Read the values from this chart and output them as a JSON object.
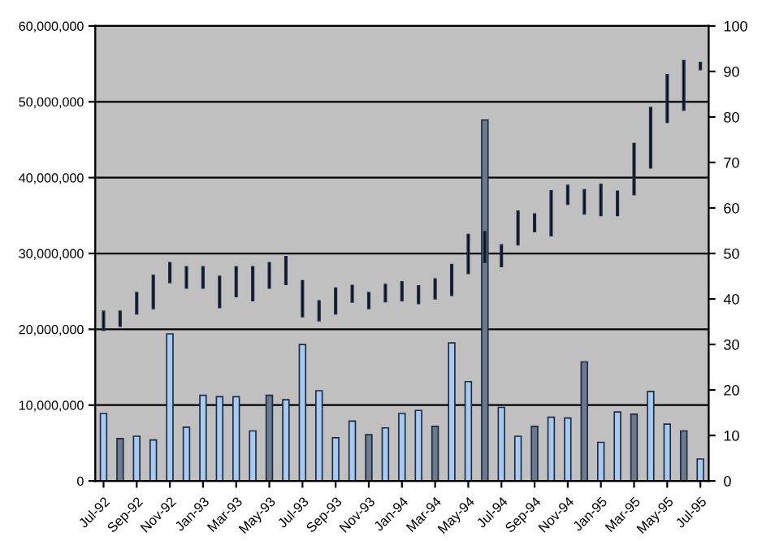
{
  "chart_data": {
    "type": "bar",
    "categories": [
      "Jul-92",
      null,
      "Sep-92",
      null,
      "Nov-92",
      null,
      "Jan-93",
      null,
      "Mar-93",
      null,
      "May-93",
      null,
      "Jul-93",
      null,
      "Sep-93",
      null,
      "Nov-93",
      null,
      "Jan-94",
      null,
      "Mar-94",
      null,
      "May-94",
      null,
      "Jul-94",
      null,
      "Sep-94",
      null,
      "Nov-94",
      null,
      "Jan-95",
      null,
      "Mar-95",
      null,
      "May-95",
      null,
      "Jul-95"
    ],
    "series": [
      {
        "color": "#a6caf0",
        "colors": [
          "#a6caf0",
          "#6b7a8c",
          "#a6caf0",
          "#a6caf0",
          "#a6caf0",
          "#a6caf0",
          "#a6caf0",
          "#a6caf0",
          "#a6caf0",
          "#a6caf0",
          "#6b7a8c",
          "#a6caf0",
          "#a6caf0",
          "#a6caf0",
          "#a6caf0",
          "#a6caf0",
          "#6b7a8c",
          "#a6caf0",
          "#a6caf0",
          "#a6caf0",
          "#6b7a8c",
          "#a6caf0",
          "#a6caf0",
          "#6b7a8c",
          "#a6caf0",
          "#a6caf0",
          "#6b7a8c",
          "#a6caf0",
          "#a6caf0",
          "#6b7a8c",
          "#a6caf0",
          "#a6caf0",
          "#6b7a8c",
          "#a6caf0",
          "#a6caf0",
          "#6b7a8c",
          "#a6caf0"
        ],
        "values": [
          8900000,
          5600000,
          5900000,
          5400000,
          19400000,
          7100000,
          11300000,
          11100000,
          11100000,
          6600000,
          11300000,
          10700000,
          18000000,
          11900000,
          5700000,
          7900000,
          6100000,
          7000000,
          8900000,
          9300000,
          7200000,
          18200000,
          13100000,
          47600000,
          9700000,
          5900000,
          7200000,
          8400000,
          8300000,
          15700000,
          5100000,
          9100000,
          8800000,
          11800000,
          7500000,
          6600000,
          2900000
        ]
      },
      {
        "axis": "y2",
        "color": "#000000",
        "base": [
          33.1,
          34.0,
          36.7,
          37.9,
          43.6,
          42.4,
          42.4,
          38.1,
          40.5,
          39.6,
          42.4,
          43.2,
          36.1,
          35.2,
          36.7,
          39.3,
          37.9,
          39.4,
          39.6,
          39.0,
          40.0,
          40.8,
          45.6,
          48.0,
          47.1,
          51.9,
          54.8,
          53.9,
          60.8,
          58.7,
          58.3,
          58.3,
          62.9,
          68.8,
          78.8,
          81.5,
          90.4
        ],
        "values": [
          4.2,
          3.3,
          4.7,
          7.3,
          4.4,
          4.7,
          4.7,
          6.9,
          6.6,
          7.5,
          5.6,
          6.1,
          7.9,
          4.4,
          5.7,
          3.7,
          3.5,
          3.8,
          4.2,
          3.9,
          4.4,
          6.8,
          8.6,
          6.8,
          4.8,
          7.4,
          3.9,
          9.9,
          4.2,
          5.3,
          6.9,
          5.4,
          11.3,
          13.3,
          10.5,
          10.9,
          1.6
        ]
      }
    ],
    "ylim": [
      0,
      60000000
    ],
    "yticks": [
      0,
      {
        "value": 10000000,
        "label": "10,000,000"
      },
      {
        "value": 20000000,
        "label": "20,000,000"
      },
      {
        "value": 30000000,
        "label": "30,000,000"
      },
      {
        "value": 40000000,
        "label": "40,000,000"
      },
      {
        "value": 50000000,
        "label": "50,000,000"
      },
      {
        "value": 60000000,
        "label": "60,000,000"
      }
    ],
    "y2lim": [
      0,
      100
    ],
    "y2ticks": [
      0,
      10,
      20,
      30,
      40,
      50,
      60,
      70,
      80,
      90,
      100
    ],
    "grid": "y",
    "legend": false
  }
}
